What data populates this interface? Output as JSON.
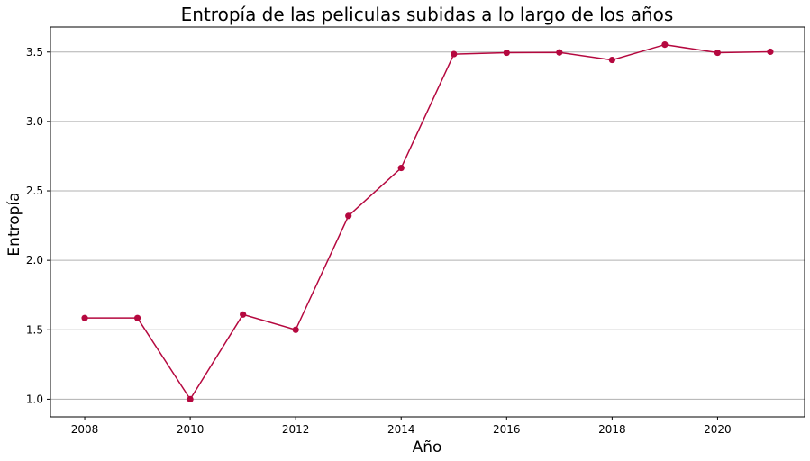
{
  "chart_data": {
    "type": "line",
    "title": "Entropía de las peliculas subidas a lo largo de los años",
    "xlabel": "Año",
    "ylabel": "Entropía",
    "x": [
      2008,
      2009,
      2010,
      2011,
      2012,
      2013,
      2014,
      2015,
      2016,
      2017,
      2018,
      2019,
      2020,
      2021
    ],
    "series": [
      {
        "values": [
          1.585,
          1.585,
          1.0,
          1.61,
          1.5,
          2.32,
          2.665,
          3.485,
          3.495,
          3.497,
          3.443,
          3.553,
          3.495,
          3.502
        ],
        "color": "#b5083f"
      }
    ],
    "xlim": [
      2007.35,
      2021.65
    ],
    "ylim": [
      0.873,
      3.68
    ],
    "xticks": [
      2008,
      2010,
      2012,
      2014,
      2016,
      2018,
      2020
    ],
    "yticks": [
      1.0,
      1.5,
      2.0,
      2.5,
      3.0,
      3.5
    ],
    "ytick_labels": [
      "1.0",
      "1.5",
      "2.0",
      "2.5",
      "3.0",
      "3.5"
    ],
    "grid": "y",
    "legend": "none",
    "colors": {
      "line": "#b5083f",
      "grid": "#b0b0b0",
      "axis": "#000000"
    }
  }
}
